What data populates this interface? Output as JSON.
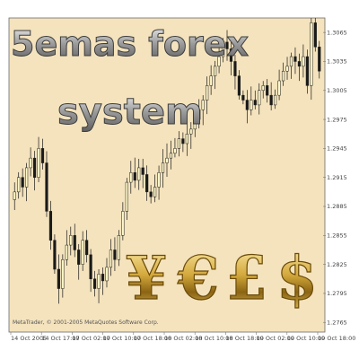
{
  "chart_data": {
    "type": "candlestick",
    "title_lines": [
      "5emas forex",
      "system"
    ],
    "footer": "MetaTrader, © 2001-2005 MetaQuotes Software Corp.",
    "ylim": [
      1.2755,
      1.308
    ],
    "y_ticks": [
      "1.3065",
      "1.3035",
      "1.3005",
      "1.2975",
      "1.2945",
      "1.2915",
      "1.2885",
      "1.2855",
      "1.2825",
      "1.2795",
      "1.2765"
    ],
    "x_ticks": [
      "14 Oct 2005",
      "14 Oct 17:00",
      "17 Oct 02:00",
      "17 Oct 10:00",
      "17 Oct 18:00",
      "18 Oct 02:00",
      "18 Oct 10:00",
      "18 Oct 18:00",
      "19 Oct 02:00",
      "19 Oct 10:00",
      "19 Oct 18:00"
    ],
    "currency_symbols": [
      "¥",
      "€",
      "£",
      "$"
    ],
    "colors": {
      "background": "#f4e3bd",
      "frame": "#6b6b6b",
      "candle_up": "#fff7c8",
      "candle_down": "#1a1a1a",
      "wick": "#1a1a1a",
      "gold": "#c8a23c"
    },
    "closes": [
      1.29,
      1.2915,
      1.2905,
      1.2925,
      1.2935,
      1.2915,
      1.2945,
      1.293,
      1.288,
      1.285,
      1.282,
      1.28,
      1.283,
      1.2845,
      1.2855,
      1.284,
      1.2825,
      1.285,
      1.2835,
      1.281,
      1.28,
      1.2815,
      1.2808,
      1.2822,
      1.284,
      1.283,
      1.2855,
      1.288,
      1.291,
      1.292,
      1.2912,
      1.2925,
      1.2918,
      1.29,
      1.2895,
      1.2905,
      1.292,
      1.293,
      1.2935,
      1.294,
      1.2945,
      1.2955,
      1.295,
      1.296,
      1.2965,
      1.2975,
      1.2985,
      1.2995,
      1.301,
      1.302,
      1.303,
      1.304,
      1.3055,
      1.3048,
      1.3035,
      1.302,
      1.3,
      1.2995,
      1.2985,
      1.2995,
      1.299,
      1.3005,
      1.301,
      1.3,
      1.299,
      1.3,
      1.3015,
      1.3025,
      1.303,
      1.304,
      1.3035,
      1.303,
      1.304,
      1.301,
      1.3075,
      1.305,
      1.3025
    ]
  }
}
